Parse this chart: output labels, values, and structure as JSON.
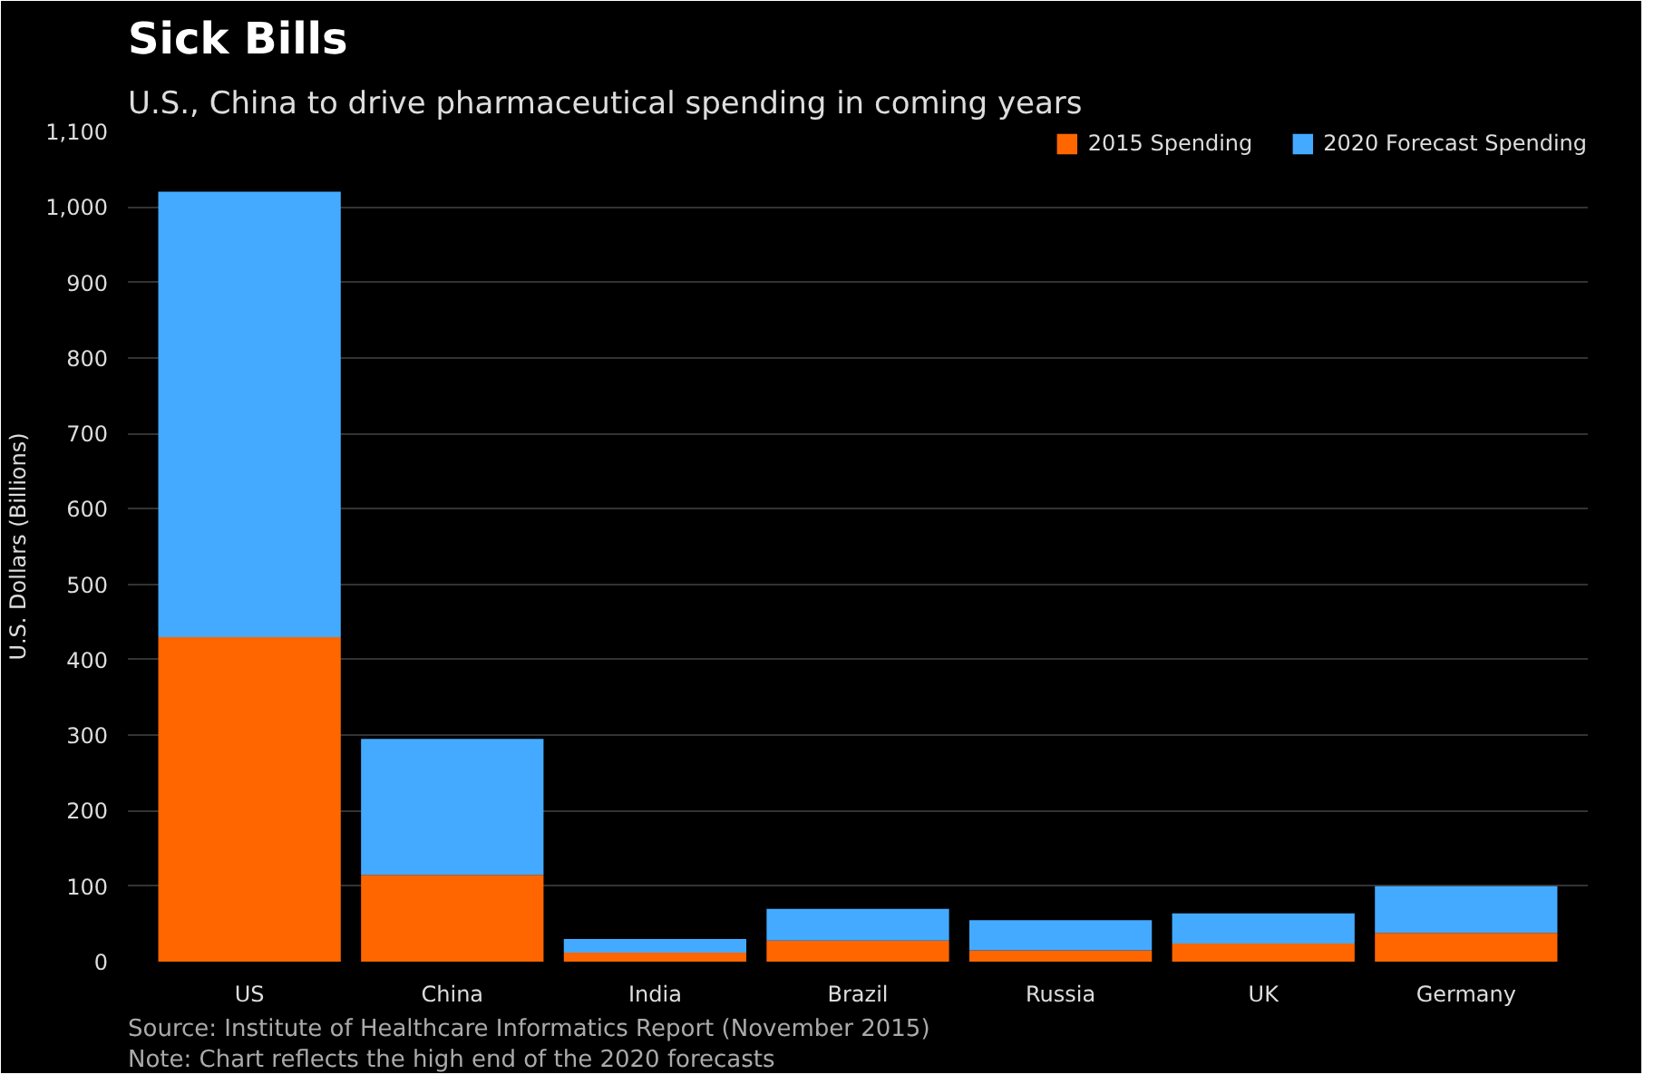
{
  "chart_data": {
    "type": "bar",
    "stacked": true,
    "title": "Sick Bills",
    "subtitle": "U.S., China to drive pharmaceutical spending in coming years",
    "ylabel": "U.S. Dollars (Billions)",
    "categories": [
      "US",
      "China",
      "India",
      "Brazil",
      "Russia",
      "UK",
      "Germany"
    ],
    "series": [
      {
        "name": "2015 Spending",
        "color": "#ff6600",
        "values": [
          430,
          115,
          12,
          28,
          15,
          24,
          38
        ]
      },
      {
        "name": "2020 Forecast Spending",
        "color": "#44aaff",
        "values": [
          590,
          180,
          18,
          42,
          40,
          40,
          62
        ]
      }
    ],
    "ylim": [
      0,
      1100
    ],
    "yticks": [
      0,
      100,
      200,
      300,
      400,
      500,
      600,
      700,
      800,
      900,
      {
        "value": 1000,
        "label": "1,000"
      },
      {
        "value": 1100,
        "label": "1,100"
      }
    ],
    "grid": "y",
    "legend": "top right",
    "annotations": [
      "Source: Institute of Healthcare Informatics Report (November 2015)",
      "Note: Chart reflects the high end of the 2020 forecasts"
    ]
  }
}
